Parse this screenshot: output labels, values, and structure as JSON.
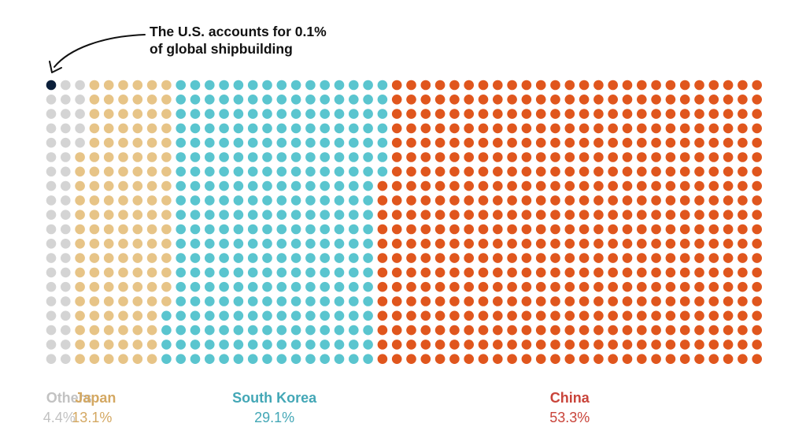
{
  "chart_data": {
    "type": "waffle",
    "title": "",
    "annotation": {
      "lines": [
        "The U.S. accounts for 0.1%",
        "of global shipbuilding"
      ],
      "target": "United States"
    },
    "grid": {
      "columns": 50,
      "rows": 20,
      "total_units": 1000
    },
    "fill_order": "column-major, top-to-bottom, left-to-right",
    "categories": [
      {
        "name": "United States",
        "label": "",
        "percent_label": "",
        "value": 0.1,
        "units": 1,
        "color": "#0b1f3a"
      },
      {
        "name": "Others",
        "label": "Others",
        "percent_label": "4.4%",
        "value": 4.4,
        "units": 44,
        "color": "#d4d4d4"
      },
      {
        "name": "Japan",
        "label": "Japan",
        "percent_label": "13.1%",
        "value": 13.1,
        "units": 131,
        "color": "#e7c487"
      },
      {
        "name": "South Korea",
        "label": "South Korea",
        "percent_label": "29.1%",
        "value": 29.1,
        "units": 291,
        "color": "#5ac5cf"
      },
      {
        "name": "China",
        "label": "China",
        "percent_label": "53.3%",
        "value": 53.3,
        "units": 533,
        "color": "#e0561d"
      }
    ]
  },
  "label_colors": {
    "Others": "#c2c2c2",
    "Japan": "#d4a862",
    "South Korea": "#43a7b6",
    "China": "#c9443a"
  }
}
